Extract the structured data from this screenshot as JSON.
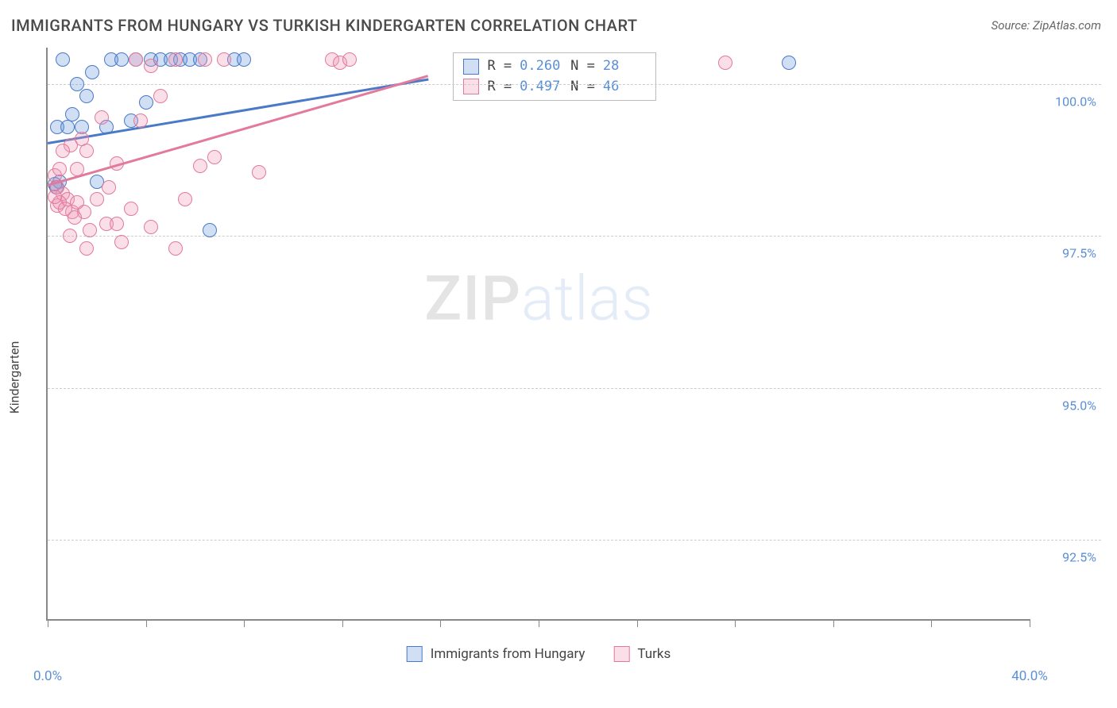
{
  "header": {
    "title": "IMMIGRANTS FROM HUNGARY VS TURKISH KINDERGARTEN CORRELATION CHART",
    "source": "Source: ZipAtlas.com"
  },
  "chart": {
    "type": "scatter",
    "y_axis_label": "Kindergarten",
    "background_color": "#ffffff",
    "grid_color": "#cccccc",
    "axis_color": "#888888",
    "marker_radius": 9,
    "marker_border_width": 1.5,
    "marker_fill_opacity": 0.25,
    "trendline_width": 2.5,
    "xlim": [
      0,
      40
    ],
    "ylim": [
      91.2,
      100.6
    ],
    "x_ticks": {
      "positions": [
        0,
        4,
        8,
        12,
        16,
        20,
        24,
        28,
        32,
        36,
        40
      ],
      "labels": {
        "0": "0.0%",
        "40": "40.0%"
      }
    },
    "y_ticks": [
      {
        "value": 100.0,
        "label": "100.0%"
      },
      {
        "value": 97.5,
        "label": "97.5%"
      },
      {
        "value": 95.0,
        "label": "95.0%"
      },
      {
        "value": 92.5,
        "label": "92.5%"
      }
    ],
    "series": [
      {
        "name": "Immigrants from Hungary",
        "color_stroke": "#4a7ac7",
        "color_fill": "rgba(100,150,220,0.3)",
        "r": "0.260",
        "n": "28",
        "trend": {
          "x1": 0,
          "y1": 99.05,
          "x2": 15.5,
          "y2": 100.1
        },
        "points": [
          [
            1.6,
            99.8
          ],
          [
            1.0,
            99.5
          ],
          [
            0.4,
            99.3
          ],
          [
            0.8,
            99.3
          ],
          [
            1.4,
            99.3
          ],
          [
            2.6,
            100.4
          ],
          [
            3.0,
            100.4
          ],
          [
            3.6,
            100.4
          ],
          [
            4.2,
            100.4
          ],
          [
            4.6,
            100.4
          ],
          [
            5.0,
            100.4
          ],
          [
            5.4,
            100.4
          ],
          [
            5.8,
            100.4
          ],
          [
            6.2,
            100.4
          ],
          [
            7.6,
            100.4
          ],
          [
            0.5,
            98.4
          ],
          [
            0.3,
            98.35
          ],
          [
            0.35,
            98.3
          ],
          [
            2.0,
            98.4
          ],
          [
            6.6,
            97.6
          ],
          [
            0.6,
            100.4
          ],
          [
            2.4,
            99.3
          ],
          [
            3.4,
            99.4
          ],
          [
            4.0,
            99.7
          ],
          [
            8.0,
            100.4
          ],
          [
            1.2,
            100.0
          ],
          [
            1.8,
            100.2
          ],
          [
            30.2,
            100.35
          ]
        ]
      },
      {
        "name": "Turks",
        "color_stroke": "#e27a9b",
        "color_fill": "rgba(240,150,180,0.3)",
        "r": "0.497",
        "n": "46",
        "trend": {
          "x1": 0,
          "y1": 98.35,
          "x2": 15.5,
          "y2": 100.15
        },
        "points": [
          [
            0.3,
            98.5
          ],
          [
            0.5,
            98.6
          ],
          [
            0.4,
            98.3
          ],
          [
            0.6,
            98.2
          ],
          [
            0.4,
            98.0
          ],
          [
            0.8,
            98.1
          ],
          [
            1.2,
            98.6
          ],
          [
            1.6,
            98.9
          ],
          [
            2.8,
            98.7
          ],
          [
            3.6,
            100.4
          ],
          [
            4.2,
            100.3
          ],
          [
            11.6,
            100.4
          ],
          [
            11.9,
            100.35
          ],
          [
            12.3,
            100.4
          ],
          [
            1.0,
            97.9
          ],
          [
            1.5,
            97.9
          ],
          [
            2.4,
            97.7
          ],
          [
            3.0,
            97.4
          ],
          [
            0.9,
            97.5
          ],
          [
            1.6,
            97.3
          ],
          [
            5.2,
            97.3
          ],
          [
            2.8,
            97.7
          ],
          [
            3.8,
            99.4
          ],
          [
            4.6,
            99.8
          ],
          [
            6.4,
            100.4
          ],
          [
            7.2,
            100.4
          ],
          [
            0.5,
            98.05
          ],
          [
            0.3,
            98.15
          ],
          [
            0.7,
            97.95
          ],
          [
            5.6,
            98.1
          ],
          [
            6.2,
            98.65
          ],
          [
            8.6,
            98.55
          ],
          [
            6.8,
            98.8
          ],
          [
            5.2,
            100.4
          ],
          [
            27.6,
            100.35
          ],
          [
            2.2,
            99.45
          ],
          [
            2.0,
            98.1
          ],
          [
            1.2,
            98.05
          ],
          [
            1.4,
            99.1
          ],
          [
            0.95,
            99.0
          ],
          [
            1.7,
            97.6
          ],
          [
            3.4,
            97.95
          ],
          [
            4.2,
            97.65
          ],
          [
            1.1,
            97.8
          ],
          [
            2.5,
            98.3
          ],
          [
            0.6,
            98.9
          ]
        ]
      }
    ],
    "x_legend": [
      {
        "label": "Immigrants from Hungary",
        "stroke": "#4a7ac7",
        "fill": "rgba(100,150,220,0.3)"
      },
      {
        "label": "Turks",
        "stroke": "#e27a9b",
        "fill": "rgba(240,150,180,0.3)"
      }
    ],
    "watermark": {
      "part1": "ZIP",
      "part2": "atlas"
    }
  },
  "fonts": {
    "title_size": 20,
    "label_size": 16,
    "tick_size": 16,
    "legend_size": 17
  }
}
